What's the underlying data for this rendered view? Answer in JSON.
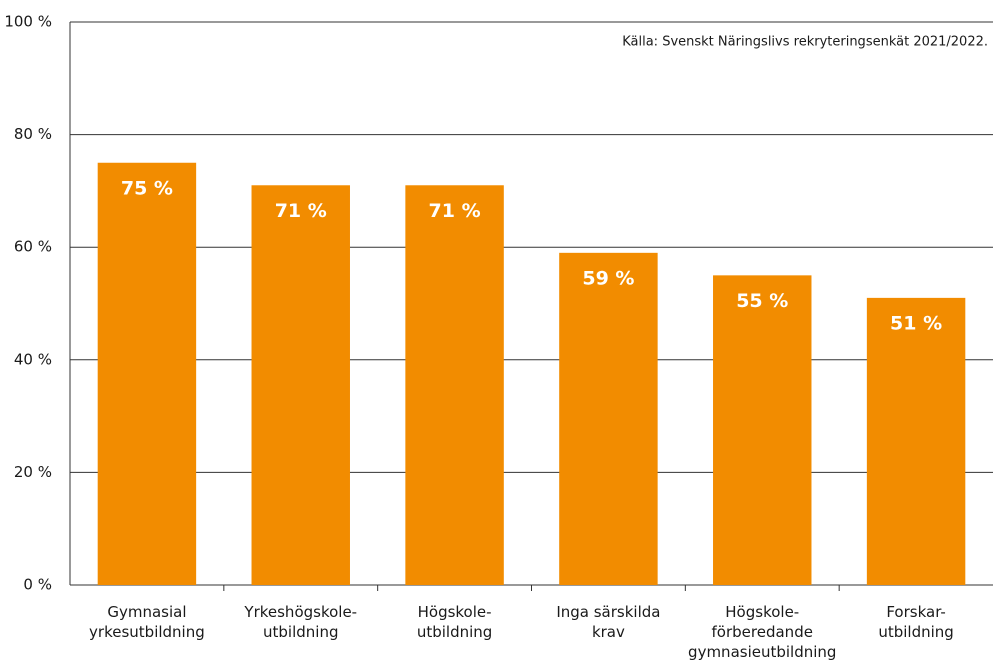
{
  "chart_data": {
    "type": "bar",
    "annotation": "Källa: Svenskt Näringslivs rekryteringsenkät 2021/2022.",
    "categories": [
      "Gymnasial\nyrkesutbildning",
      "Yrkeshögskole-\nutbildning",
      "Högskole-\nutbildning",
      "Inga särskilda\nkrav",
      "Högskole-\nförberedande\ngymnasieutbildning",
      "Forskar-\nutbildning"
    ],
    "values": [
      75,
      71,
      71,
      59,
      55,
      51
    ],
    "value_labels": [
      "75 %",
      "71 %",
      "71 %",
      "59 %",
      "55 %",
      "51 %"
    ],
    "color": "#f28c00",
    "ylim": [
      0,
      100
    ],
    "yticks": [
      {
        "value": 0,
        "label": "0 %"
      },
      {
        "value": 20,
        "label": "20 %"
      },
      {
        "value": 40,
        "label": "40 %"
      },
      {
        "value": 60,
        "label": "60 %"
      },
      {
        "value": 80,
        "label": "80 %"
      },
      {
        "value": 100,
        "label": "100 %"
      }
    ],
    "grid": true
  }
}
